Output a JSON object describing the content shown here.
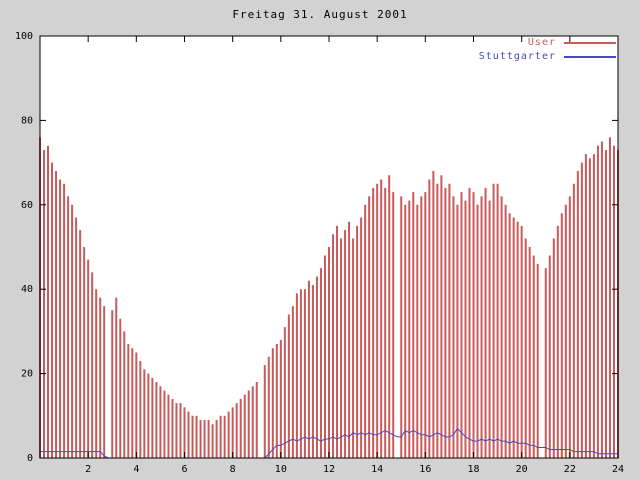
{
  "chart_data": {
    "type": "bar",
    "title": "Freitag 31. August 2001",
    "xlabel": "",
    "ylabel": "",
    "xlim": [
      0,
      24
    ],
    "ylim": [
      0,
      100
    ],
    "xticks": [
      2,
      4,
      6,
      8,
      10,
      12,
      14,
      16,
      18,
      20,
      22,
      24
    ],
    "yticks": [
      0,
      20,
      40,
      60,
      80,
      100
    ],
    "grid": false,
    "legend_position": "top-right",
    "x_unit": "hour-of-day",
    "sample_interval_minutes": 10,
    "series": [
      {
        "name": "User",
        "style": "impulses",
        "color": "#c85a5a",
        "values": [
          76,
          73,
          74,
          70,
          68,
          66,
          65,
          62,
          60,
          57,
          54,
          50,
          47,
          44,
          40,
          38,
          36,
          null,
          35,
          38,
          33,
          30,
          27,
          26,
          25,
          23,
          21,
          20,
          19,
          18,
          17,
          16,
          15,
          14,
          13,
          13,
          12,
          11,
          10,
          10,
          9,
          9,
          9,
          8,
          9,
          10,
          10,
          11,
          12,
          13,
          14,
          15,
          16,
          17,
          18,
          null,
          22,
          24,
          26,
          27,
          28,
          31,
          34,
          36,
          39,
          40,
          40,
          42,
          41,
          43,
          45,
          48,
          50,
          53,
          55,
          52,
          54,
          56,
          52,
          55,
          57,
          60,
          62,
          64,
          65,
          66,
          64,
          67,
          63,
          null,
          62,
          60,
          61,
          63,
          60,
          62,
          63,
          66,
          68,
          65,
          67,
          64,
          65,
          62,
          60,
          63,
          61,
          64,
          63,
          60,
          62,
          64,
          61,
          65,
          65,
          62,
          60,
          58,
          57,
          56,
          55,
          52,
          50,
          48,
          46,
          null,
          45,
          48,
          52,
          55,
          58,
          60,
          62,
          65,
          68,
          70,
          72,
          71,
          72,
          74,
          75,
          73,
          76,
          74,
          73
        ]
      },
      {
        "name": "Stuttgarter",
        "style": "line",
        "color": "#4848c0",
        "values": [
          1.5,
          1.5,
          1.5,
          1.5,
          1.5,
          1.5,
          1.5,
          1.5,
          1.5,
          1.5,
          1.5,
          1.5,
          1.5,
          1.5,
          1.5,
          1.5,
          0.5,
          0,
          0,
          0,
          0,
          0,
          0,
          0,
          0,
          0,
          0,
          0,
          0,
          0,
          0,
          0,
          0,
          0,
          0,
          0,
          0,
          0,
          0,
          0,
          0,
          0,
          0,
          0,
          0,
          0,
          0,
          0,
          0,
          0,
          0,
          0,
          0,
          0,
          0,
          0,
          0,
          1,
          2,
          3,
          3,
          3.5,
          4,
          4.5,
          4,
          4.5,
          5,
          4.5,
          5,
          4.5,
          4,
          4.5,
          4.5,
          5,
          4.5,
          5,
          5.5,
          5,
          6,
          5.5,
          6,
          5.5,
          6,
          5.5,
          5.5,
          6,
          6.5,
          6,
          5.5,
          5,
          5,
          6.5,
          6,
          6.5,
          6,
          5.5,
          5.5,
          5,
          5.5,
          6,
          5.5,
          5,
          5,
          5.5,
          7,
          6,
          5,
          4.5,
          4,
          4,
          4.5,
          4,
          4.5,
          4,
          4.5,
          4,
          4,
          3.5,
          4,
          3.5,
          3.5,
          3.5,
          3,
          3,
          2.5,
          2.5,
          2.5,
          2,
          2,
          2,
          2,
          2,
          2,
          1.5,
          1.5,
          1.5,
          1.5,
          1.5,
          1.5,
          1,
          1,
          1,
          1,
          1,
          1
        ]
      }
    ],
    "colors": {
      "background": "#d2d2d2",
      "plot_background": "#ffffff",
      "border": "#000000",
      "user_series": "#c85a5a",
      "stuttgarter_series": "#4848c0"
    }
  }
}
